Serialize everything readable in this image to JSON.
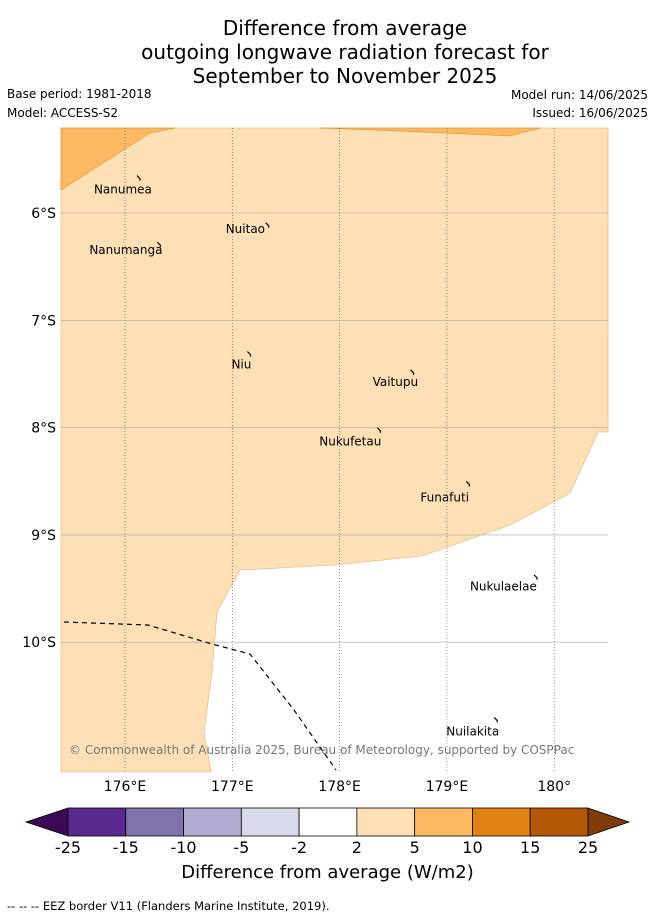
{
  "title": {
    "line1": "Difference from average",
    "line2": "outgoing longwave radiation forecast for",
    "line3": "September to November 2025"
  },
  "meta": {
    "base_period": "Base period: 1981-2018",
    "model": "Model: ACCESS-S2",
    "model_run": "Model run: 14/06/2025",
    "issued": "Issued: 16/06/2025"
  },
  "map": {
    "lon_ticks": [
      "176°E",
      "177°E",
      "178°E",
      "179°E",
      "180°"
    ],
    "lat_ticks": [
      "6°S",
      "7°S",
      "8°S",
      "9°S",
      "10°S"
    ],
    "copyright": "© Commonwealth of Australia 2025, Bureau of Meteorology, supported by COSPPac",
    "islands": [
      {
        "name": "Nanumea",
        "lon": 176.13,
        "lat": -5.67
      },
      {
        "name": "Nuitao",
        "lon": 177.33,
        "lat": -6.11
      },
      {
        "name": "Nanumanga",
        "lon": 176.32,
        "lat": -6.29
      },
      {
        "name": "Niu",
        "lon": 177.16,
        "lat": -7.31
      },
      {
        "name": "Vaitupu",
        "lon": 178.68,
        "lat": -7.48
      },
      {
        "name": "Nukufetau",
        "lon": 178.37,
        "lat": -8.02
      },
      {
        "name": "Funafuti",
        "lon": 179.2,
        "lat": -8.52
      },
      {
        "name": "Nukulaelae",
        "lon": 179.83,
        "lat": -9.39
      },
      {
        "name": "Nuilakita",
        "lon": 179.46,
        "lat": -10.72
      }
    ],
    "colors": {
      "pos_2_5": "#fde0b6",
      "pos_5_10": "#fdb863",
      "land": "#000000"
    }
  },
  "colorbar": {
    "title": "Difference from average (W/m2)",
    "ticks": [
      "-25",
      "-15",
      "-10",
      "-5",
      "-2",
      "2",
      "5",
      "10",
      "15",
      "25"
    ],
    "colors": [
      "#3b0a54",
      "#5a2a90",
      "#8073ac",
      "#b2abd2",
      "#d8daeb",
      "#ffffff",
      "#fee0b6",
      "#fdb863",
      "#e08214",
      "#b35806",
      "#7f3b08"
    ]
  },
  "footer": "-- -- -- EEZ border V11 (Flanders Marine Institute, 2019)."
}
